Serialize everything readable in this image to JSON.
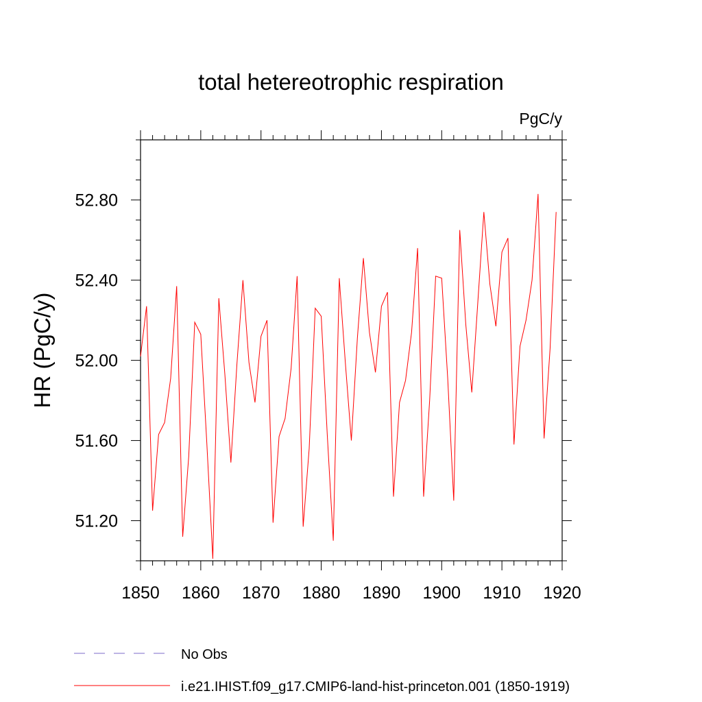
{
  "chart_data": {
    "type": "line",
    "title": "total hetereotrophic respiration",
    "units_label": "PgC/y",
    "ylabel": "HR  (PgC/y)",
    "xlabel": "",
    "xlim": [
      1850,
      1920
    ],
    "ylim": [
      51.0,
      53.1
    ],
    "x_ticks": [
      1850,
      1860,
      1870,
      1880,
      1890,
      1900,
      1910,
      1920
    ],
    "x_tick_labels": [
      "1850",
      "1860",
      "1870",
      "1880",
      "1890",
      "1900",
      "1910",
      "1920"
    ],
    "y_ticks": [
      51.2,
      51.6,
      52.0,
      52.4,
      52.8
    ],
    "y_tick_labels": [
      "51.20",
      "51.60",
      "52.00",
      "52.40",
      "52.80"
    ],
    "grid": false,
    "legend_position": "bottom",
    "legend": [
      {
        "label": "No Obs",
        "color": "#7b68c8",
        "style": "dashed"
      },
      {
        "label": "i.e21.IHIST.f09_g17.CMIP6-land-hist-princeton.001 (1850-1919)",
        "color": "#ff0000",
        "style": "solid"
      }
    ],
    "series": [
      {
        "color": "#ff0000",
        "x": [
          1850,
          1851,
          1852,
          1853,
          1854,
          1855,
          1856,
          1857,
          1858,
          1859,
          1860,
          1861,
          1862,
          1863,
          1864,
          1865,
          1866,
          1867,
          1868,
          1869,
          1870,
          1871,
          1872,
          1873,
          1874,
          1875,
          1876,
          1877,
          1878,
          1879,
          1880,
          1881,
          1882,
          1883,
          1884,
          1885,
          1886,
          1887,
          1888,
          1889,
          1890,
          1891,
          1892,
          1893,
          1894,
          1895,
          1896,
          1897,
          1898,
          1899,
          1900,
          1901,
          1902,
          1903,
          1904,
          1905,
          1906,
          1907,
          1908,
          1909,
          1910,
          1911,
          1912,
          1913,
          1914,
          1915,
          1916,
          1917,
          1918,
          1919
        ],
        "values": [
          52.02,
          52.27,
          51.25,
          51.63,
          51.69,
          51.91,
          52.37,
          51.12,
          51.52,
          52.19,
          52.13,
          51.59,
          51.01,
          52.31,
          51.93,
          51.49,
          51.98,
          52.4,
          51.99,
          51.79,
          52.12,
          52.2,
          51.19,
          51.62,
          51.71,
          51.96,
          52.42,
          51.17,
          51.56,
          52.26,
          52.22,
          51.63,
          51.1,
          52.41,
          51.99,
          51.6,
          52.11,
          52.51,
          52.14,
          51.94,
          52.27,
          52.34,
          51.32,
          51.79,
          51.9,
          52.14,
          52.56,
          51.32,
          51.8,
          52.42,
          52.41,
          51.91,
          51.3,
          52.65,
          52.18,
          51.84,
          52.29,
          52.74,
          52.38,
          52.17,
          52.54,
          52.61,
          51.58,
          52.07,
          52.2,
          52.4,
          52.83,
          51.61,
          52.06,
          52.74
        ]
      }
    ]
  }
}
